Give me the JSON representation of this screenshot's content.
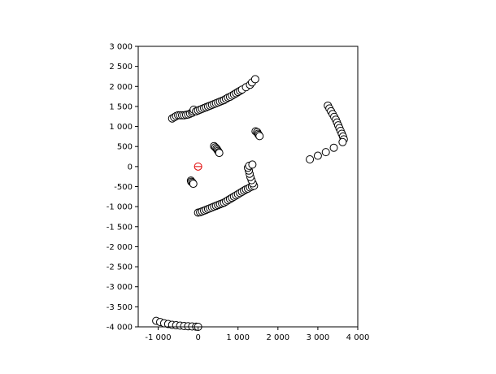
{
  "chart_data": {
    "type": "scatter",
    "title": "",
    "xlabel": "",
    "ylabel": "",
    "xlim": [
      -1500,
      4000
    ],
    "ylim": [
      -4000,
      3000
    ],
    "grid": false,
    "xticks": [
      -1000,
      0,
      1000,
      2000,
      3000,
      4000
    ],
    "xtick_labels": [
      "-1 000",
      "0",
      "1 000",
      "2 000",
      "3 000",
      "4 000"
    ],
    "yticks": [
      -4000,
      -3500,
      -3000,
      -2500,
      -2000,
      -1500,
      -1000,
      -500,
      0,
      500,
      1000,
      1500,
      2000,
      2500,
      3000
    ],
    "ytick_labels": [
      "-4 000",
      "-3 500",
      "-3 000",
      "-2 500",
      "-2 000",
      "-1 500",
      "-1 000",
      "-500",
      "0",
      "500",
      "1 000",
      "1 500",
      "2 000",
      "2 500",
      "3 000"
    ],
    "colors": {
      "points_edge": "#000000",
      "points_fill": "#ffffff",
      "origin": "#e00000"
    },
    "origin_marker": {
      "x": 0,
      "y": 0
    },
    "series": [
      {
        "points": [
          [
            -650,
            1200
          ],
          [
            -600,
            1230
          ],
          [
            -550,
            1260
          ],
          [
            -500,
            1280
          ],
          [
            -450,
            1280
          ],
          [
            -400,
            1280
          ],
          [
            -350,
            1280
          ],
          [
            -300,
            1290
          ],
          [
            -250,
            1300
          ],
          [
            -200,
            1320
          ],
          [
            -150,
            1340
          ],
          [
            -130,
            1380
          ],
          [
            -110,
            1420
          ],
          [
            -50,
            1380
          ],
          [
            0,
            1400
          ],
          [
            50,
            1420
          ],
          [
            100,
            1440
          ],
          [
            150,
            1460
          ],
          [
            200,
            1480
          ],
          [
            250,
            1500
          ],
          [
            300,
            1520
          ],
          [
            350,
            1540
          ],
          [
            400,
            1560
          ],
          [
            450,
            1580
          ],
          [
            500,
            1600
          ],
          [
            550,
            1620
          ],
          [
            600,
            1640
          ],
          [
            650,
            1660
          ],
          [
            700,
            1690
          ],
          [
            750,
            1720
          ],
          [
            800,
            1740
          ],
          [
            850,
            1770
          ],
          [
            900,
            1800
          ],
          [
            950,
            1830
          ],
          [
            1000,
            1860
          ],
          [
            1050,
            1890
          ],
          [
            1100,
            1920
          ],
          [
            1200,
            1980
          ],
          [
            1300,
            2040
          ],
          [
            1350,
            2100
          ],
          [
            1430,
            2180
          ],
          [
            400,
            510
          ],
          [
            430,
            480
          ],
          [
            460,
            450
          ],
          [
            480,
            420
          ],
          [
            500,
            390
          ],
          [
            520,
            360
          ],
          [
            530,
            340
          ],
          [
            1440,
            880
          ],
          [
            1480,
            860
          ],
          [
            1500,
            820
          ],
          [
            1520,
            790
          ],
          [
            1540,
            760
          ],
          [
            -180,
            -350
          ],
          [
            -170,
            -380
          ],
          [
            -140,
            -400
          ],
          [
            -120,
            -430
          ],
          [
            0,
            -1150
          ],
          [
            50,
            -1140
          ],
          [
            100,
            -1120
          ],
          [
            150,
            -1100
          ],
          [
            200,
            -1080
          ],
          [
            250,
            -1060
          ],
          [
            300,
            -1040
          ],
          [
            350,
            -1020
          ],
          [
            400,
            -1000
          ],
          [
            450,
            -980
          ],
          [
            500,
            -960
          ],
          [
            550,
            -940
          ],
          [
            600,
            -920
          ],
          [
            650,
            -900
          ],
          [
            700,
            -870
          ],
          [
            750,
            -840
          ],
          [
            800,
            -810
          ],
          [
            850,
            -780
          ],
          [
            900,
            -750
          ],
          [
            950,
            -720
          ],
          [
            1000,
            -690
          ],
          [
            1050,
            -660
          ],
          [
            1100,
            -630
          ],
          [
            1150,
            -600
          ],
          [
            1200,
            -570
          ],
          [
            1250,
            -550
          ],
          [
            1300,
            -520
          ],
          [
            1350,
            -500
          ],
          [
            1400,
            -480
          ],
          [
            1370,
            -420
          ],
          [
            1340,
            -340
          ],
          [
            1310,
            -260
          ],
          [
            1290,
            -180
          ],
          [
            1270,
            -100
          ],
          [
            1250,
            -30
          ],
          [
            1280,
            20
          ],
          [
            1360,
            50
          ],
          [
            3250,
            1520
          ],
          [
            3290,
            1450
          ],
          [
            3330,
            1380
          ],
          [
            3370,
            1310
          ],
          [
            3410,
            1240
          ],
          [
            3450,
            1170
          ],
          [
            3480,
            1100
          ],
          [
            3510,
            1030
          ],
          [
            3540,
            960
          ],
          [
            3570,
            890
          ],
          [
            3600,
            820
          ],
          [
            3630,
            750
          ],
          [
            3650,
            680
          ],
          [
            3620,
            610
          ],
          [
            2800,
            180
          ],
          [
            3000,
            270
          ],
          [
            3200,
            360
          ],
          [
            3400,
            470
          ],
          [
            -1050,
            -3850
          ],
          [
            -950,
            -3880
          ],
          [
            -850,
            -3910
          ],
          [
            -750,
            -3930
          ],
          [
            -650,
            -3950
          ],
          [
            -550,
            -3960
          ],
          [
            -450,
            -3970
          ],
          [
            -350,
            -3980
          ],
          [
            -250,
            -3985
          ],
          [
            -150,
            -3990
          ],
          [
            -50,
            -3995
          ],
          [
            0,
            -4000
          ]
        ]
      }
    ]
  }
}
